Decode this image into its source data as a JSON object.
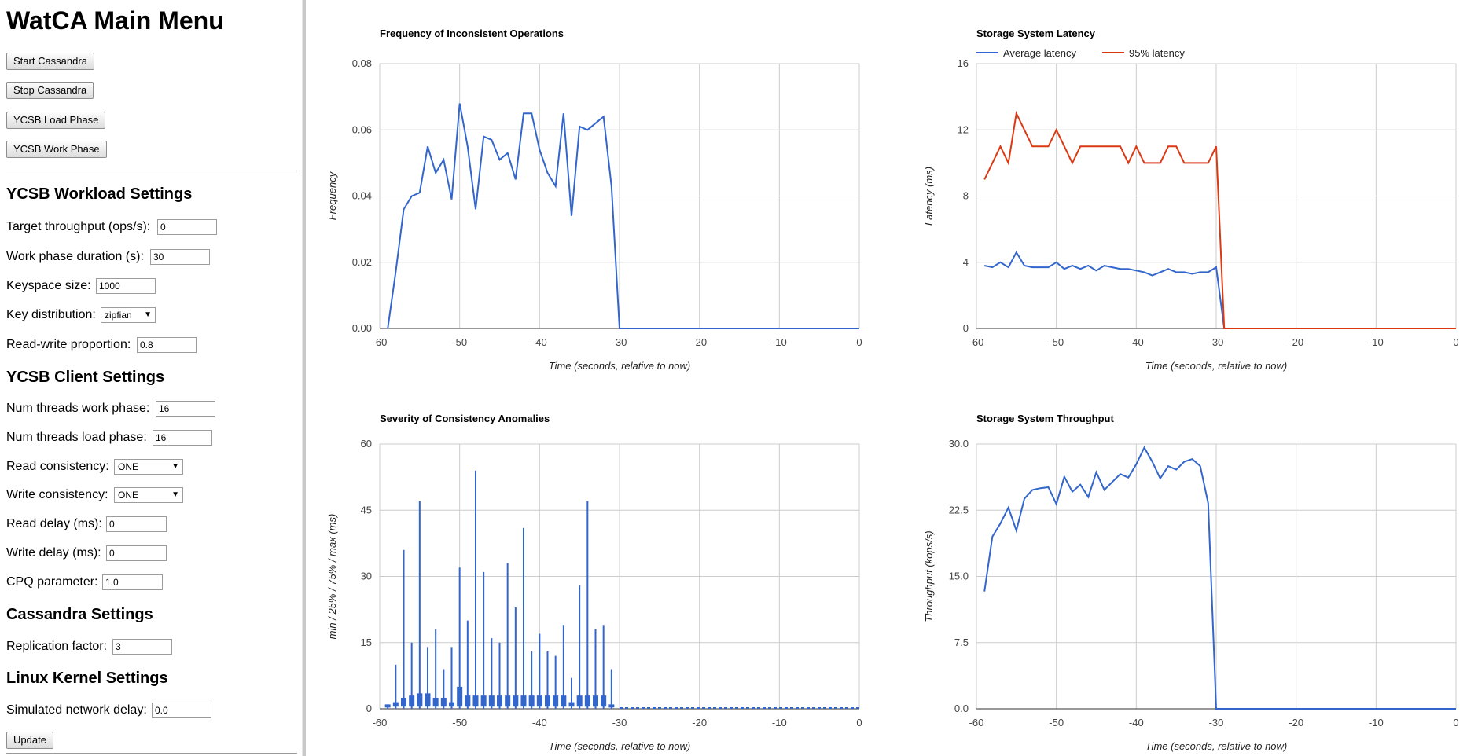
{
  "sidebar": {
    "title": "WatCA Main Menu",
    "buttons": {
      "start": "Start Cassandra",
      "stop": "Stop Cassandra",
      "load": "YCSB Load Phase",
      "work": "YCSB Work Phase",
      "update": "Update"
    },
    "workload": {
      "heading": "YCSB Workload Settings",
      "target_throughput": {
        "label": "Target throughput (ops/s):",
        "value": "0"
      },
      "work_duration": {
        "label": "Work phase duration (s):",
        "value": "30"
      },
      "keyspace": {
        "label": "Keyspace size:",
        "value": "1000"
      },
      "key_distribution": {
        "label": "Key distribution:",
        "value": "zipfian"
      },
      "rw_proportion": {
        "label": "Read-write proportion:",
        "value": "0.8"
      }
    },
    "client": {
      "heading": "YCSB Client Settings",
      "threads_work": {
        "label": "Num threads work phase:",
        "value": "16"
      },
      "threads_load": {
        "label": "Num threads load phase:",
        "value": "16"
      },
      "read_consistency": {
        "label": "Read consistency:",
        "value": "ONE"
      },
      "write_consistency": {
        "label": "Write consistency:",
        "value": "ONE"
      },
      "read_delay": {
        "label": "Read delay (ms):",
        "value": "0"
      },
      "write_delay": {
        "label": "Write delay (ms):",
        "value": "0"
      },
      "cpq": {
        "label": "CPQ parameter:",
        "value": "1.0"
      }
    },
    "cassandra": {
      "heading": "Cassandra Settings",
      "replication": {
        "label": "Replication factor:",
        "value": "3"
      }
    },
    "kernel": {
      "heading": "Linux Kernel Settings",
      "net_delay": {
        "label": "Simulated network delay:",
        "value": "0.0"
      }
    }
  },
  "colors": {
    "blue": "#3366cc",
    "red": "#dc3912",
    "grid": "#cccccc"
  },
  "chart_data": [
    {
      "id": "freq",
      "type": "line",
      "title": "Frequency of Inconsistent Operations",
      "xlabel": "Time (seconds, relative to now)",
      "ylabel": "Frequency",
      "xlim": [
        -60,
        0
      ],
      "ylim": [
        0,
        0.08
      ],
      "xticks": [
        -60,
        -50,
        -40,
        -30,
        -20,
        -10,
        0
      ],
      "yticks": [
        "0.00",
        "0.02",
        "0.04",
        "0.06",
        "0.08"
      ],
      "series": [
        {
          "name": "Frequency",
          "color": "#3366cc",
          "x": [
            -59,
            -58,
            -57,
            -56,
            -55,
            -54,
            -53,
            -52,
            -51,
            -50,
            -49,
            -48,
            -47,
            -46,
            -45,
            -44,
            -43,
            -42,
            -41,
            -40,
            -39,
            -38,
            -37,
            -36,
            -35,
            -34,
            -33,
            -32,
            -31,
            -30,
            -29,
            0
          ],
          "y": [
            0.0,
            0.017,
            0.036,
            0.04,
            0.041,
            0.055,
            0.047,
            0.051,
            0.039,
            0.068,
            0.055,
            0.036,
            0.058,
            0.057,
            0.051,
            0.053,
            0.045,
            0.065,
            0.065,
            0.054,
            0.047,
            0.043,
            0.065,
            0.034,
            0.061,
            0.06,
            0.062,
            0.064,
            0.043,
            0.0,
            0.0,
            0.0
          ]
        }
      ]
    },
    {
      "id": "latency",
      "type": "line",
      "title": "Storage System Latency",
      "xlabel": "Time (seconds, relative to now)",
      "ylabel": "Latency (ms)",
      "xlim": [
        -60,
        0
      ],
      "ylim": [
        0,
        16
      ],
      "xticks": [
        -60,
        -50,
        -40,
        -30,
        -20,
        -10,
        0
      ],
      "yticks": [
        "0",
        "4",
        "8",
        "12",
        "16"
      ],
      "legend": "top-left",
      "series": [
        {
          "name": "Average latency",
          "color": "#3366cc",
          "x": [
            -59,
            -58,
            -57,
            -56,
            -55,
            -54,
            -53,
            -52,
            -51,
            -50,
            -49,
            -48,
            -47,
            -46,
            -45,
            -44,
            -43,
            -42,
            -41,
            -40,
            -39,
            -38,
            -37,
            -36,
            -35,
            -34,
            -33,
            -32,
            -31,
            -30,
            -29,
            0
          ],
          "y": [
            3.8,
            3.7,
            4.0,
            3.7,
            4.6,
            3.8,
            3.7,
            3.7,
            3.7,
            4.0,
            3.6,
            3.8,
            3.6,
            3.8,
            3.5,
            3.8,
            3.7,
            3.6,
            3.6,
            3.5,
            3.4,
            3.2,
            3.4,
            3.6,
            3.4,
            3.4,
            3.3,
            3.4,
            3.4,
            3.7,
            0,
            0
          ]
        },
        {
          "name": "95% latency",
          "color": "#dc3912",
          "x": [
            -59,
            -58,
            -57,
            -56,
            -55,
            -54,
            -53,
            -52,
            -51,
            -50,
            -49,
            -48,
            -47,
            -46,
            -45,
            -44,
            -43,
            -42,
            -41,
            -40,
            -39,
            -38,
            -37,
            -36,
            -35,
            -34,
            -33,
            -32,
            -31,
            -30,
            -29,
            0
          ],
          "y": [
            9,
            10,
            11,
            10,
            13,
            12,
            11,
            11,
            11,
            12,
            11,
            10,
            11,
            11,
            11,
            11,
            11,
            11,
            10,
            11,
            10,
            10,
            10,
            11,
            11,
            10,
            10,
            10,
            10,
            11,
            0,
            0
          ]
        }
      ]
    },
    {
      "id": "severity",
      "type": "bar",
      "title": "Severity of Consistency Anomalies",
      "xlabel": "Time (seconds, relative to now)",
      "ylabel": "min / 25% / 75% / max (ms)",
      "xlim": [
        -60,
        0
      ],
      "ylim": [
        0,
        60
      ],
      "xticks": [
        -60,
        -50,
        -40,
        -30,
        -20,
        -10,
        0
      ],
      "yticks": [
        "0",
        "15",
        "30",
        "45",
        "60"
      ],
      "candles": {
        "x": [
          -59,
          -58,
          -57,
          -56,
          -55,
          -54,
          -53,
          -52,
          -51,
          -50,
          -49,
          -48,
          -47,
          -46,
          -45,
          -44,
          -43,
          -42,
          -41,
          -40,
          -39,
          -38,
          -37,
          -36,
          -35,
          -34,
          -33,
          -32,
          -31
        ],
        "min": [
          0,
          0,
          0,
          0,
          0,
          0,
          0,
          0,
          0,
          0,
          0,
          0,
          0,
          0,
          0,
          0,
          0,
          0,
          0,
          0,
          0,
          0,
          0,
          0,
          0,
          0,
          0,
          0,
          0
        ],
        "q1": [
          0.3,
          0.5,
          0.5,
          0.5,
          0.5,
          0.5,
          0.5,
          0.5,
          0.5,
          0.5,
          0.5,
          0.5,
          0.5,
          0.5,
          0.5,
          0.5,
          0.5,
          0.5,
          0.5,
          0.5,
          0.5,
          0.5,
          0.5,
          0.5,
          0.5,
          0.5,
          0.5,
          0.5,
          0.3
        ],
        "q3": [
          1,
          1.5,
          2.5,
          3,
          3.5,
          3.5,
          2.5,
          2.5,
          1.5,
          5,
          3,
          3,
          3,
          3,
          3,
          3,
          3,
          3,
          3,
          3,
          3,
          3,
          3,
          1.5,
          3,
          3,
          3,
          3,
          1
        ],
        "max": [
          1,
          10,
          36,
          15,
          47,
          14,
          18,
          9,
          14,
          32,
          20,
          54,
          31,
          16,
          15,
          33,
          23,
          41,
          13,
          17,
          13,
          12,
          19,
          7,
          28,
          47,
          18,
          19,
          9
        ]
      }
    },
    {
      "id": "throughput",
      "type": "line",
      "title": "Storage System Throughput",
      "xlabel": "Time (seconds, relative to now)",
      "ylabel": "Throughput (kops/s)",
      "xlim": [
        -60,
        0
      ],
      "ylim": [
        0,
        30
      ],
      "xticks": [
        -60,
        -50,
        -40,
        -30,
        -20,
        -10,
        0
      ],
      "yticks": [
        "0.0",
        "7.5",
        "15.0",
        "22.5",
        "30.0"
      ],
      "series": [
        {
          "name": "Throughput",
          "color": "#3366cc",
          "x": [
            -59,
            -58,
            -57,
            -56,
            -55,
            -54,
            -53,
            -52,
            -51,
            -50,
            -49,
            -48,
            -47,
            -46,
            -45,
            -44,
            -43,
            -42,
            -41,
            -40,
            -39,
            -38,
            -37,
            -36,
            -35,
            -34,
            -33,
            -32,
            -31,
            -30,
            -29,
            0
          ],
          "y": [
            13.3,
            19.5,
            21.0,
            22.8,
            20.2,
            23.8,
            24.8,
            25.0,
            25.1,
            23.2,
            26.3,
            24.6,
            25.4,
            24.0,
            26.8,
            24.8,
            25.7,
            26.6,
            26.2,
            27.7,
            29.6,
            28.0,
            26.1,
            27.5,
            27.1,
            28.0,
            28.3,
            27.5,
            23.3,
            0,
            0,
            0
          ]
        }
      ]
    }
  ]
}
